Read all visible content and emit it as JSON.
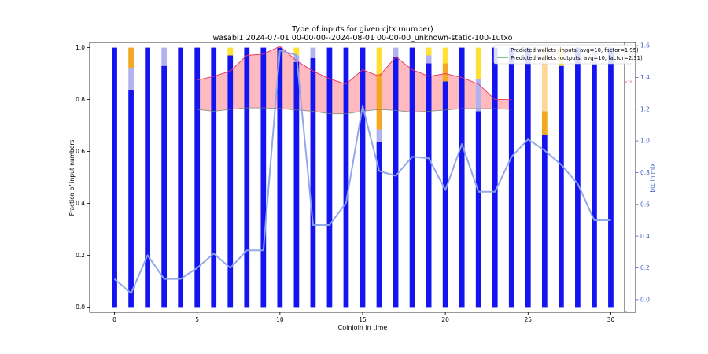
{
  "chart_data": {
    "type": "bar",
    "title": "Type of inputs for given cjtx (number)",
    "subtitle": "wasabi1 2024-07-01 00-00-00--2024-08-01 00-00-00_unknown-static-100-1utxo",
    "xlabel": "Coinjoin in time",
    "ylabel": "Fraction of input numbers",
    "y2label": "btc in mix",
    "xlim": [
      -1.5,
      31.5
    ],
    "ylim": [
      -0.02,
      1.02
    ],
    "y2lim": [
      -0.08,
      1.62
    ],
    "x_ticks": [
      0,
      5,
      10,
      15,
      20,
      25,
      30
    ],
    "y_ticks": [
      0.0,
      0.2,
      0.4,
      0.6,
      0.8,
      1.0
    ],
    "y2_ticks": [
      0.0,
      0.2,
      0.4,
      0.6,
      0.8,
      1.0,
      1.2,
      1.4,
      1.6
    ],
    "y3_tick_label": "10",
    "grid": false,
    "legend_placement": "top-right",
    "colors": {
      "fresh": "#1414f0",
      "remix": "#b2b2f0",
      "orange": "#f5a623",
      "yellow": "#ffe033",
      "light_orange": "#ffd69a",
      "btc_line": "#8ca3e8",
      "inputs_line": "#e8335a",
      "outputs_line": "#7fbf7f",
      "fill": "#ffb3b8",
      "y2_axis": "#4060c8"
    },
    "stacks": [
      [
        [
          "fresh",
          1.0
        ]
      ],
      [
        [
          "fresh",
          0.835
        ],
        [
          "remix",
          0.085
        ],
        [
          "orange",
          0.08
        ]
      ],
      [
        [
          "fresh",
          1.0
        ]
      ],
      [
        [
          "fresh",
          0.93
        ],
        [
          "remix",
          0.07
        ]
      ],
      [
        [
          "fresh",
          1.0
        ]
      ],
      [
        [
          "fresh",
          1.0
        ]
      ],
      [
        [
          "fresh",
          1.0
        ]
      ],
      [
        [
          "fresh",
          0.97
        ],
        [
          "yellow",
          0.03
        ]
      ],
      [
        [
          "fresh",
          1.0
        ]
      ],
      [
        [
          "fresh",
          1.0
        ]
      ],
      [
        [
          "fresh",
          1.0
        ]
      ],
      [
        [
          "fresh",
          0.945
        ],
        [
          "remix",
          0.025
        ],
        [
          "yellow",
          0.03
        ]
      ],
      [
        [
          "fresh",
          0.96
        ],
        [
          "remix",
          0.04
        ]
      ],
      [
        [
          "fresh",
          1.0
        ]
      ],
      [
        [
          "fresh",
          1.0
        ]
      ],
      [
        [
          "fresh",
          1.0
        ]
      ],
      [
        [
          "fresh",
          0.635
        ],
        [
          "remix",
          0.05
        ],
        [
          "orange",
          0.215
        ],
        [
          "yellow",
          0.1
        ]
      ],
      [
        [
          "fresh",
          0.965
        ],
        [
          "remix",
          0.035
        ]
      ],
      [
        [
          "fresh",
          1.0
        ]
      ],
      [
        [
          "fresh",
          0.94
        ],
        [
          "remix",
          0.03
        ],
        [
          "yellow",
          0.03
        ]
      ],
      [
        [
          "fresh",
          0.87
        ],
        [
          "orange",
          0.07
        ],
        [
          "yellow",
          0.06
        ]
      ],
      [
        [
          "fresh",
          1.0
        ]
      ],
      [
        [
          "fresh",
          0.755
        ],
        [
          "remix",
          0.125
        ],
        [
          "yellow",
          0.12
        ]
      ],
      [
        [
          "fresh",
          1.0
        ]
      ],
      [
        [
          "fresh",
          1.0
        ]
      ],
      [
        [
          "fresh",
          1.0
        ]
      ],
      [
        [
          "fresh",
          0.665
        ],
        [
          "orange",
          0.09
        ],
        [
          "light_orange",
          0.245
        ]
      ],
      [
        [
          "fresh",
          0.93
        ],
        [
          "yellow",
          0.07
        ]
      ],
      [
        [
          "fresh",
          1.0
        ]
      ],
      [
        [
          "fresh",
          0.935
        ],
        [
          "remix",
          0.065
        ]
      ],
      [
        [
          "fresh",
          1.0
        ]
      ]
    ],
    "btc_in_mix": {
      "x": [
        0,
        1,
        2,
        3,
        4,
        5,
        6,
        7,
        8,
        9,
        10,
        11,
        12,
        13,
        14,
        15,
        16,
        17,
        18,
        19,
        20,
        21,
        22,
        23,
        24,
        25,
        26,
        27,
        28,
        29,
        30
      ],
      "values": [
        0.13,
        0.04,
        0.28,
        0.13,
        0.13,
        0.2,
        0.29,
        0.2,
        0.31,
        0.31,
        1.57,
        1.54,
        0.47,
        0.47,
        0.61,
        1.22,
        0.81,
        0.78,
        0.9,
        0.89,
        0.69,
        0.98,
        0.68,
        0.68,
        0.9,
        1.01,
        0.94,
        0.85,
        0.73,
        0.5,
        0.5
      ]
    },
    "series": [
      {
        "name": "Predicted wallets (inputs, avg=10, factor=1.95)",
        "x": [
          5,
          6,
          7,
          8,
          9,
          10,
          11,
          12,
          13,
          14,
          15,
          16,
          17,
          18,
          19,
          20,
          21,
          22,
          23,
          24
        ],
        "values": [
          0.875,
          0.89,
          0.91,
          0.97,
          0.975,
          1.005,
          0.95,
          0.91,
          0.88,
          0.86,
          0.915,
          0.89,
          0.965,
          0.915,
          0.89,
          0.9,
          0.885,
          0.86,
          0.8,
          0.8
        ]
      },
      {
        "name": "Predicted wallets (outputs, avg=10, factor=2.31)",
        "x": [
          5,
          6,
          7,
          8,
          9,
          10,
          11,
          12,
          13,
          14,
          15,
          16,
          17,
          18,
          19,
          20,
          21,
          22,
          23,
          24
        ],
        "values": [
          0.762,
          0.755,
          0.762,
          0.768,
          0.768,
          0.766,
          0.76,
          0.755,
          0.745,
          0.745,
          0.755,
          0.762,
          0.758,
          0.752,
          0.755,
          0.76,
          0.765,
          0.765,
          0.765,
          0.762
        ]
      }
    ]
  }
}
